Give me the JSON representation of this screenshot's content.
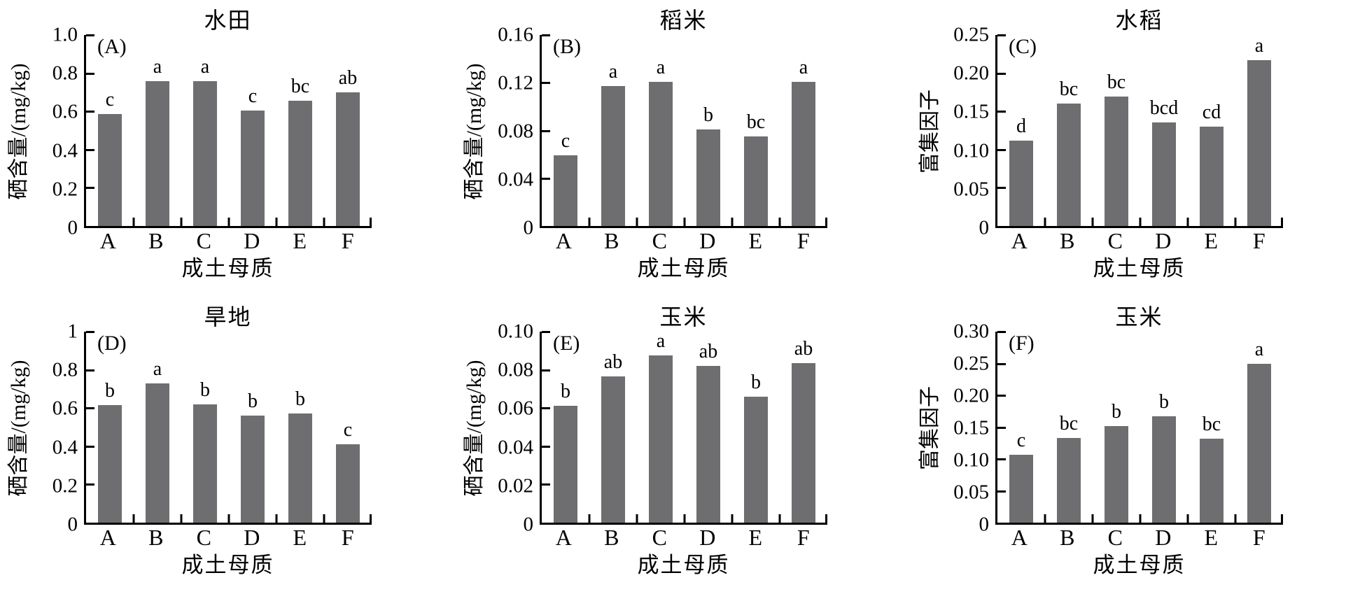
{
  "colors": {
    "bar": "#6e6e70",
    "axis": "#000000",
    "text": "#000000",
    "background": "#ffffff"
  },
  "chart_data": [
    {
      "type": "bar",
      "panel_label": "(A)",
      "title": "水田",
      "ylabel": "硒含量/(mg/kg)",
      "xlabel": "成土母质",
      "categories": [
        "A",
        "B",
        "C",
        "D",
        "E",
        "F"
      ],
      "values": [
        0.585,
        0.76,
        0.76,
        0.605,
        0.655,
        0.7
      ],
      "sig_letters": [
        "c",
        "a",
        "a",
        "c",
        "bc",
        "ab"
      ],
      "ylim": [
        0,
        1.0
      ],
      "ytick_values": [
        0,
        0.2,
        0.4,
        0.6,
        0.8,
        1.0
      ],
      "ytick_labels": [
        "0",
        "0.2",
        "0.4",
        "0.6",
        "0.8",
        "1.0"
      ],
      "grid": false,
      "legend": "none"
    },
    {
      "type": "bar",
      "panel_label": "(B)",
      "title": "稻米",
      "ylabel": "硒含量/(mg/kg)",
      "xlabel": "成土母质",
      "categories": [
        "A",
        "B",
        "C",
        "D",
        "E",
        "F"
      ],
      "values": [
        0.059,
        0.117,
        0.121,
        0.081,
        0.075,
        0.121
      ],
      "sig_letters": [
        "c",
        "a",
        "a",
        "b",
        "bc",
        "a"
      ],
      "ylim": [
        0,
        0.16
      ],
      "ytick_values": [
        0,
        0.04,
        0.08,
        0.12,
        0.16
      ],
      "ytick_labels": [
        "0",
        "0.04",
        "0.08",
        "0.12",
        "0.16"
      ],
      "grid": false,
      "legend": "none"
    },
    {
      "type": "bar",
      "panel_label": "(C)",
      "title": "水稻",
      "ylabel": "富集因子",
      "xlabel": "成土母质",
      "categories": [
        "A",
        "B",
        "C",
        "D",
        "E",
        "F"
      ],
      "values": [
        0.112,
        0.16,
        0.169,
        0.136,
        0.13,
        0.217
      ],
      "sig_letters": [
        "d",
        "bc",
        "bc",
        "bcd",
        "cd",
        "a"
      ],
      "ylim": [
        0,
        0.25
      ],
      "ytick_values": [
        0,
        0.05,
        0.1,
        0.15,
        0.2,
        0.25
      ],
      "ytick_labels": [
        "0",
        "0.05",
        "0.10",
        "0.15",
        "0.20",
        "0.25"
      ],
      "grid": false,
      "legend": "none"
    },
    {
      "type": "bar",
      "panel_label": "(D)",
      "title": "旱地",
      "ylabel": "硒含量/(mg/kg)",
      "xlabel": "成土母质",
      "categories": [
        "A",
        "B",
        "C",
        "D",
        "E",
        "F"
      ],
      "values": [
        0.615,
        0.73,
        0.62,
        0.56,
        0.572,
        0.412
      ],
      "sig_letters": [
        "b",
        "a",
        "b",
        "b",
        "b",
        "c"
      ],
      "ylim": [
        0,
        1.0
      ],
      "ytick_values": [
        0,
        0.2,
        0.4,
        0.6,
        0.8,
        1.0
      ],
      "ytick_labels": [
        "0",
        "0.2",
        "0.4",
        "0.6",
        "0.8",
        "1"
      ],
      "grid": false,
      "legend": "none"
    },
    {
      "type": "bar",
      "panel_label": "(E)",
      "title": "玉米",
      "ylabel": "硒含量/(mg/kg)",
      "xlabel": "成土母质",
      "categories": [
        "A",
        "B",
        "C",
        "D",
        "E",
        "F"
      ],
      "values": [
        0.061,
        0.0765,
        0.094,
        0.082,
        0.066,
        0.0835
      ],
      "sig_letters": [
        "b",
        "ab",
        "a",
        "ab",
        "b",
        "ab"
      ],
      "ylim": [
        0,
        0.1
      ],
      "ytick_values": [
        0,
        0.02,
        0.04,
        0.06,
        0.08,
        0.1
      ],
      "ytick_labels": [
        "0",
        "0.02",
        "0.04",
        "0.06",
        "0.08",
        "0.10"
      ],
      "grid": false,
      "legend": "none"
    },
    {
      "type": "bar",
      "panel_label": "(F)",
      "title": "玉米",
      "ylabel": "富集因子",
      "xlabel": "成土母质",
      "categories": [
        "A",
        "B",
        "C",
        "D",
        "E",
        "F"
      ],
      "values": [
        0.107,
        0.133,
        0.152,
        0.167,
        0.132,
        0.25
      ],
      "sig_letters": [
        "c",
        "bc",
        "b",
        "b",
        "bc",
        "a"
      ],
      "ylim": [
        0,
        0.3
      ],
      "ytick_values": [
        0,
        0.05,
        0.1,
        0.15,
        0.2,
        0.25,
        0.3
      ],
      "ytick_labels": [
        "0",
        "0.05",
        "0.10",
        "0.15",
        "0.20",
        "0.25",
        "0.30"
      ],
      "grid": false,
      "legend": "none"
    }
  ]
}
